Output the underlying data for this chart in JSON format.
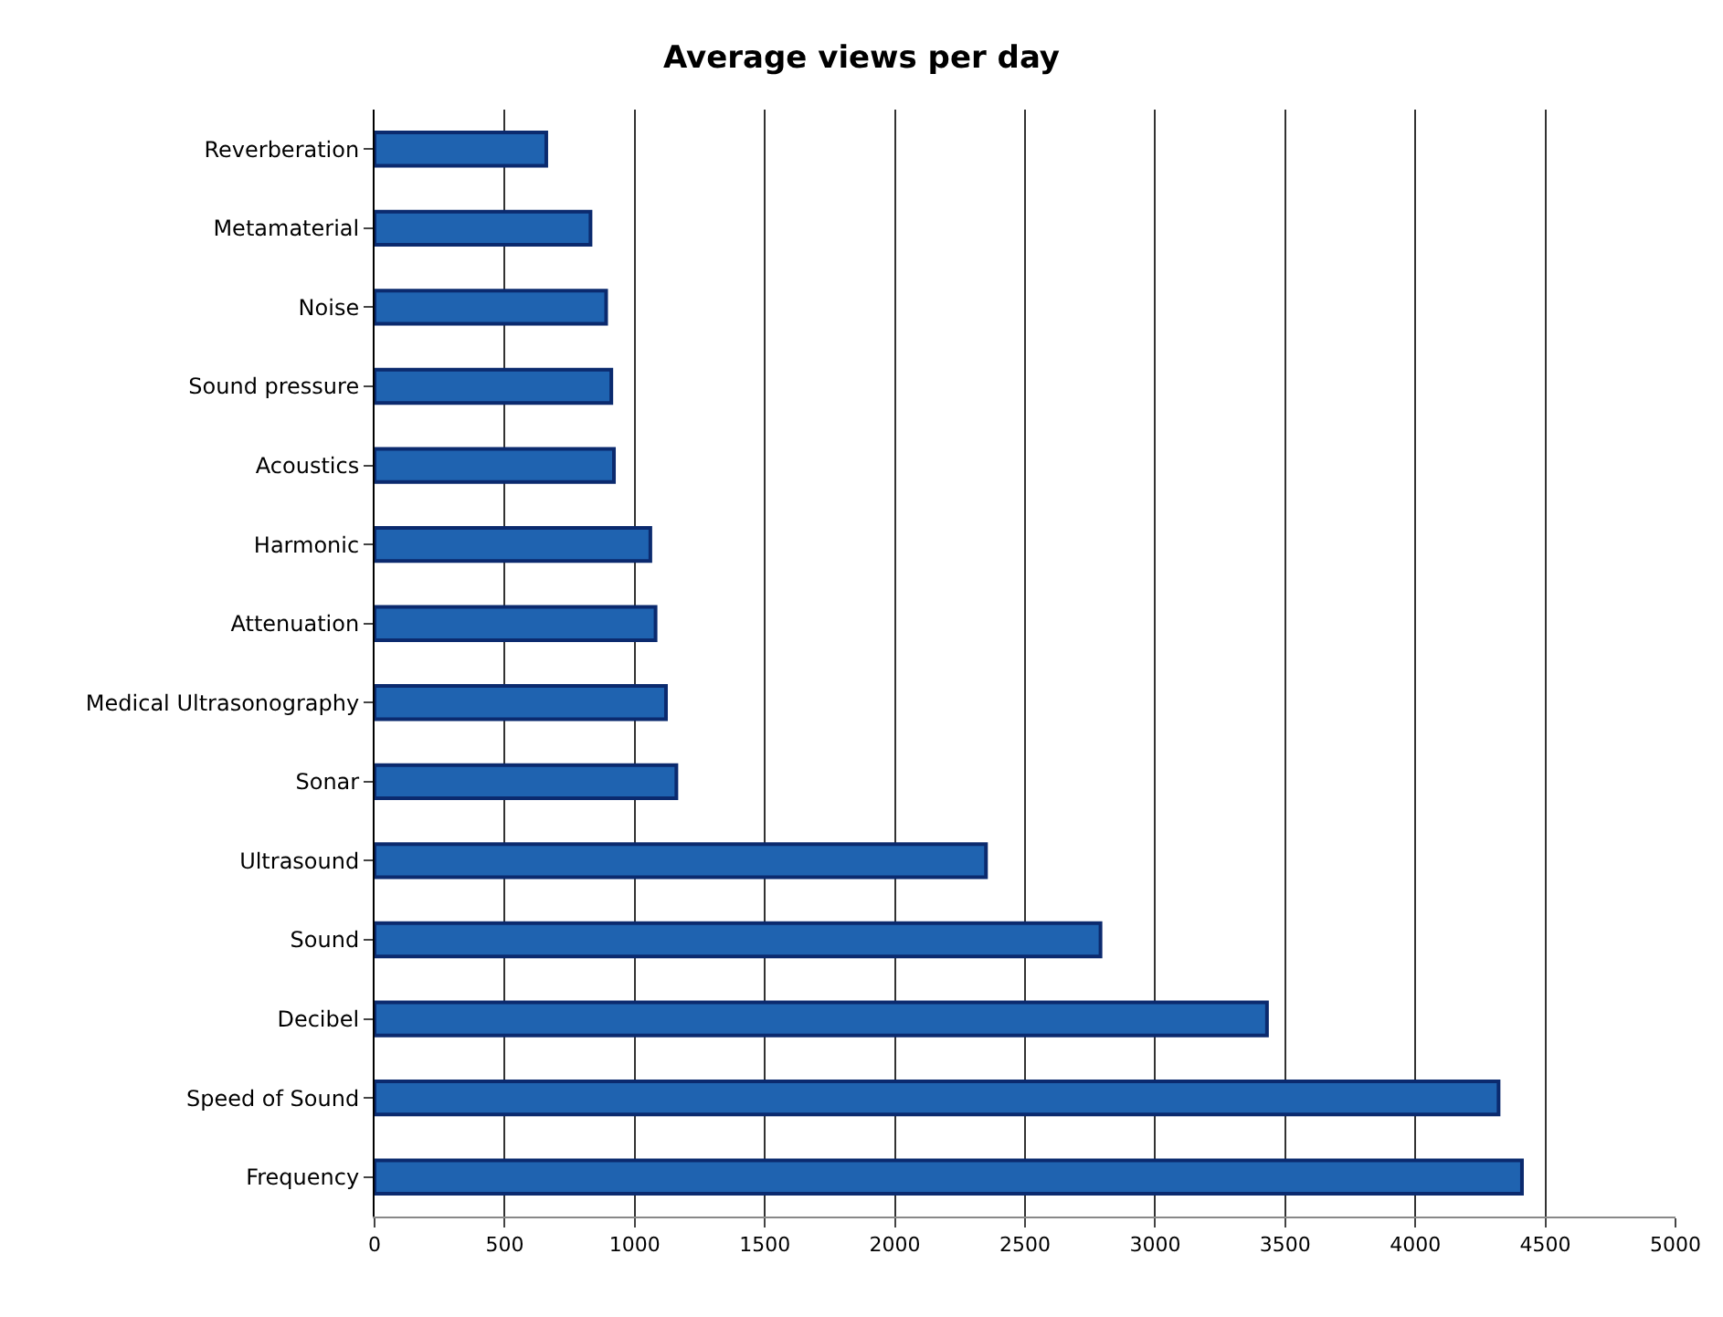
{
  "chart_data": {
    "type": "bar",
    "orientation": "horizontal",
    "title": "Average views per day",
    "categories": [
      "Reverberation",
      "Metamaterial",
      "Noise",
      "Sound pressure",
      "Acoustics",
      "Harmonic",
      "Attenuation",
      "Medical Ultrasonography",
      "Sonar",
      "Ultrasound",
      "Sound",
      "Decibel",
      "Speed of Sound",
      "Frequency"
    ],
    "values": [
      660,
      830,
      890,
      910,
      920,
      1060,
      1080,
      1120,
      1160,
      2350,
      2790,
      3430,
      4320,
      4410
    ],
    "color": "#1f63b0",
    "xlim": [
      0,
      5000
    ],
    "xticks": [
      0,
      500,
      1000,
      1500,
      2000,
      2500,
      3000,
      3500,
      4000,
      4500,
      5000
    ],
    "grid": "x",
    "legend": false
  }
}
